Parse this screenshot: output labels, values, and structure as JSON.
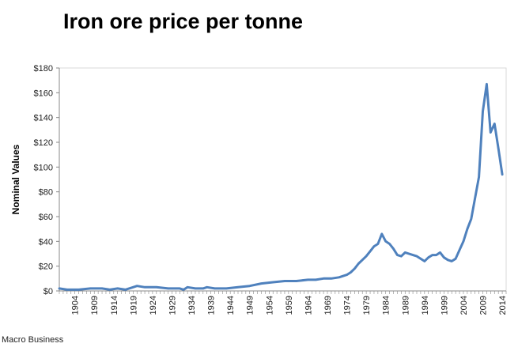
{
  "title": "Iron ore price per tonne",
  "source": "Macro Business",
  "colors": {
    "line": "#4f81bd",
    "axis": "#888888",
    "plot_border": "#d9d9d9"
  },
  "chart_data": {
    "type": "line",
    "title": "Iron ore price per tonne",
    "xlabel": "",
    "ylabel": "Nominal Values",
    "xlim": [
      1900,
      2015
    ],
    "ylim": [
      0,
      180
    ],
    "y_ticks": [
      0,
      20,
      40,
      60,
      80,
      100,
      120,
      140,
      160,
      180
    ],
    "y_tick_labels": [
      "$0",
      "$20",
      "$40",
      "$60",
      "$80",
      "$100",
      "$120",
      "$140",
      "$160",
      "$180"
    ],
    "x_tick_labels": [
      "1904",
      "1909",
      "1914",
      "1919",
      "1924",
      "1929",
      "1934",
      "1939",
      "1944",
      "1949",
      "1954",
      "1959",
      "1964",
      "1969",
      "1974",
      "1979",
      "1984",
      "1989",
      "1994",
      "1999",
      "2004",
      "2009",
      "2014"
    ],
    "grid": false,
    "legend": "none",
    "series": [
      {
        "x": [
          1900,
          1902,
          1905,
          1908,
          1911,
          1913,
          1915,
          1917,
          1919,
          1920,
          1922,
          1925,
          1928,
          1931,
          1932,
          1933,
          1935,
          1937,
          1938,
          1940,
          1943,
          1946,
          1949,
          1952,
          1955,
          1958,
          1961,
          1964,
          1966,
          1968,
          1970,
          1972,
          1974,
          1975,
          1976,
          1977,
          1978,
          1979,
          1980,
          1981,
          1982,
          1983,
          1984,
          1985,
          1986,
          1987,
          1988,
          1989,
          1990,
          1991,
          1992,
          1993,
          1994,
          1995,
          1996,
          1997,
          1998,
          1999,
          2000,
          2001,
          2002,
          2003,
          2004,
          2005,
          2006,
          2007,
          2008,
          2009,
          2010,
          2011,
          2012,
          2013,
          2014
        ],
        "y": [
          2,
          1,
          1,
          2,
          2,
          1,
          2,
          1,
          3,
          4,
          3,
          3,
          2,
          2,
          1,
          3,
          2,
          2,
          3,
          2,
          2,
          3,
          4,
          6,
          7,
          8,
          8,
          9,
          9,
          10,
          10,
          11,
          13,
          15,
          18,
          22,
          25,
          28,
          32,
          36,
          38,
          46,
          40,
          38,
          34,
          29,
          28,
          31,
          30,
          29,
          28,
          26,
          24,
          27,
          29,
          29,
          31,
          27,
          25,
          24,
          26,
          33,
          40,
          50,
          58,
          75,
          92,
          145,
          167,
          128,
          135,
          115,
          94
        ]
      }
    ]
  }
}
